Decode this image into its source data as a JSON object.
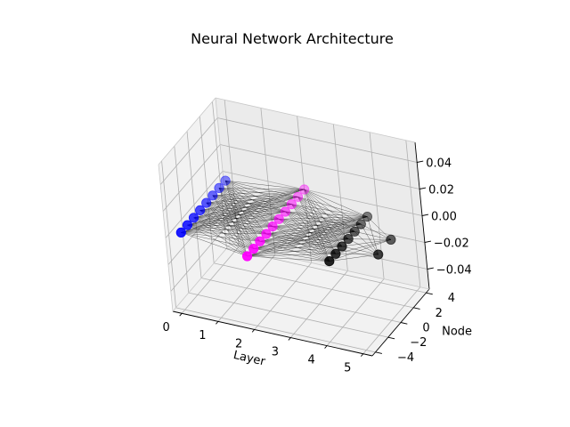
{
  "chart_data": {
    "type": "scatter",
    "projection": "3d",
    "title": "Neural Network Architecture",
    "xlabel": "Layer",
    "ylabel": "Node",
    "zlabel": "",
    "xlim": [
      -0.25,
      5.25
    ],
    "ylim": [
      -4.5,
      4.5
    ],
    "zlim": [
      -0.055,
      0.055
    ],
    "xticks": [
      "0",
      "1",
      "2",
      "3",
      "4",
      "5"
    ],
    "yticks": [
      "−4",
      "−2",
      "0",
      "2",
      "4"
    ],
    "zticks": [
      "−0.04",
      "−0.02",
      "0.00",
      "0.02",
      "0.04"
    ],
    "grid": true,
    "series": [
      {
        "layer": 0,
        "color": "#0000ff",
        "nodes": [
          -3.5,
          -2.5,
          -1.5,
          -0.5,
          0.5,
          1.5,
          2.5,
          3.5
        ]
      },
      {
        "layer": 2,
        "color": "#ff00ff",
        "nodes": [
          -4.5,
          -3.5,
          -2.5,
          -1.5,
          -0.5,
          0.5,
          1.5,
          2.5,
          3.5,
          4.5
        ]
      },
      {
        "layer": 4,
        "color": "#000000",
        "nodes": [
          -3,
          -2,
          -1,
          0,
          1,
          2,
          3
        ]
      },
      {
        "layer": 5,
        "color": "#000000",
        "nodes": [
          -1,
          1
        ]
      }
    ],
    "connections": "fully connected between consecutive layers",
    "colors": {
      "edge": "#000000",
      "pane": "#f2f2f2",
      "grid": "#b0b0b0"
    }
  }
}
